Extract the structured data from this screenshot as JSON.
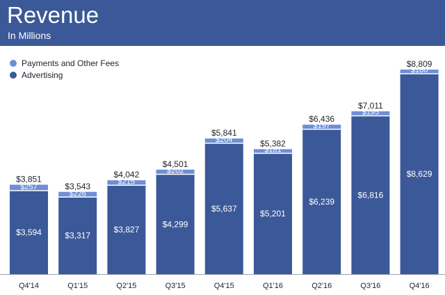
{
  "header": {
    "title": "Revenue",
    "subtitle": "In Millions"
  },
  "colors": {
    "header_bg": "#3b5998",
    "advertising": "#3b5998",
    "payments": "#6d8fd6",
    "baseline": "#9aa0aa"
  },
  "legend": [
    {
      "label": "Payments and Other Fees",
      "color": "#6d8fd6"
    },
    {
      "label": "Advertising",
      "color": "#3b5998"
    }
  ],
  "chart_data": {
    "type": "bar",
    "stacked": true,
    "categories": [
      "Q4'14",
      "Q1'15",
      "Q2'15",
      "Q3'15",
      "Q4'15",
      "Q1'16",
      "Q2'16",
      "Q3'16",
      "Q4'16"
    ],
    "series": [
      {
        "name": "Advertising",
        "values": [
          3594,
          3317,
          3827,
          4299,
          5637,
          5201,
          6239,
          6816,
          8629
        ],
        "labels": [
          "$3,594",
          "$3,317",
          "$3,827",
          "$4,299",
          "$5,637",
          "$5,201",
          "$6,239",
          "$6,816",
          "$8,629"
        ]
      },
      {
        "name": "Payments and Other Fees",
        "values": [
          257,
          226,
          215,
          202,
          204,
          181,
          197,
          195,
          180
        ],
        "labels": [
          "$257",
          "$226",
          "$215",
          "$202",
          "$204",
          "$181",
          "$197",
          "$195",
          "$180"
        ]
      }
    ],
    "totals": [
      3851,
      3543,
      4042,
      4501,
      5841,
      5382,
      6436,
      7011,
      8809
    ],
    "total_labels": [
      "$3,851",
      "$3,543",
      "$4,042",
      "$4,501",
      "$5,841",
      "$5,382",
      "$6,436",
      "$7,011",
      "$8,809"
    ],
    "title": "Revenue",
    "subtitle": "In Millions",
    "xlabel": "",
    "ylabel": "",
    "ylim": [
      0,
      8809
    ],
    "grid": false,
    "legend_position": "top-left"
  }
}
